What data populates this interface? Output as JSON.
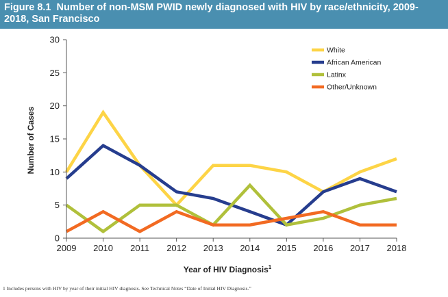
{
  "figure": {
    "title": "Figure 8.1  Number of non-MSM PWID newly diagnosed with HIV by race/ethnicity, 2009-\n2018, San Francisco",
    "footnote": "1   Includes persons with HIV by year of their initial HIV diagnosis. See Technical Notes “Date of Initial HIV Diagnosis.”"
  },
  "colors": {
    "banner": "#4a8fb0",
    "axis": "#555555",
    "text": "#222222"
  },
  "chart_data": {
    "type": "line",
    "title": "Number of non-MSM PWID newly diagnosed with HIV by race/ethnicity, 2009-2018, San Francisco",
    "xlabel": "Year of HIV Diagnosis",
    "xlabel_sup": "1",
    "ylabel": "Number of Cases",
    "categories": [
      "2009",
      "2010",
      "2011",
      "2012",
      "2013",
      "2014",
      "2015",
      "2016",
      "2017",
      "2018"
    ],
    "ylim": [
      0,
      30
    ],
    "yticks": [
      0,
      5,
      10,
      15,
      20,
      25,
      30
    ],
    "grid": false,
    "legend_position": "top-right",
    "series": [
      {
        "name": "White",
        "color": "#fdd446",
        "values": [
          10,
          19,
          11,
          5,
          11,
          11,
          10,
          7,
          10,
          12
        ]
      },
      {
        "name": "African American",
        "color": "#263d8e",
        "values": [
          9,
          14,
          11,
          7,
          6,
          4,
          2,
          7,
          9,
          7
        ]
      },
      {
        "name": "Latinx",
        "color": "#b0c03b",
        "values": [
          5,
          1,
          5,
          5,
          2,
          8,
          2,
          3,
          5,
          6
        ]
      },
      {
        "name": "Other/Unknown",
        "color": "#f26a22",
        "values": [
          1,
          4,
          1,
          4,
          2,
          2,
          3,
          4,
          2,
          2
        ]
      }
    ]
  }
}
